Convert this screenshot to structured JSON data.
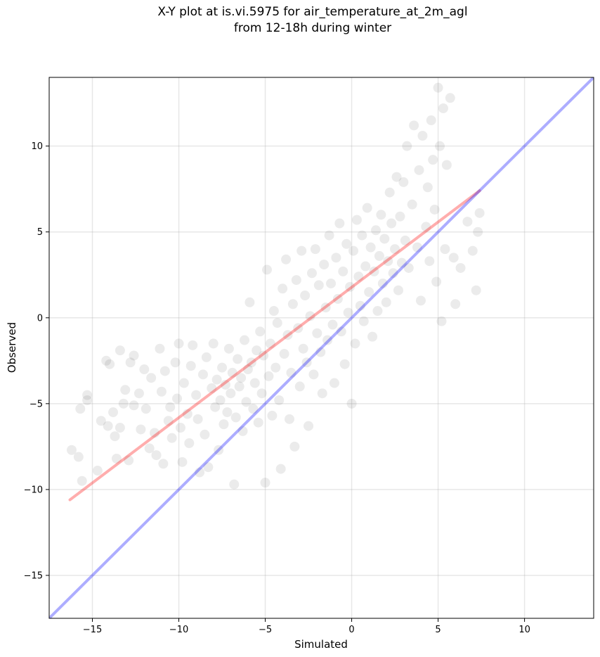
{
  "chart_data": {
    "type": "scatter",
    "title": [
      "X-Y plot at is.vi.5975 for air_temperature_at_2m_agl",
      "from 12-18h during winter"
    ],
    "xlabel": "Simulated",
    "ylabel": "Observed",
    "xlim": [
      -17.5,
      14.0
    ],
    "ylim": [
      -17.5,
      14.0
    ],
    "xticks": [
      -15,
      -10,
      -5,
      0,
      5,
      10
    ],
    "yticks": [
      -15,
      -10,
      -5,
      0,
      5,
      10
    ],
    "xtick_labels": [
      "−15",
      "−10",
      "−5",
      "0",
      "5",
      "10"
    ],
    "ytick_labels": [
      "−15",
      "−10",
      "−5",
      "0",
      "5",
      "10"
    ],
    "grid": true,
    "point_color": "#000000",
    "point_alpha": 0.08,
    "series": [
      {
        "type": "scatter",
        "values": [
          [
            -16.2,
            -7.7
          ],
          [
            -15.8,
            -8.1
          ],
          [
            -15.7,
            -5.3
          ],
          [
            -15.6,
            -9.5
          ],
          [
            -15.3,
            -4.5
          ],
          [
            -15.3,
            -4.8
          ],
          [
            -14.7,
            -8.9
          ],
          [
            -14.5,
            -6.0
          ],
          [
            -14.2,
            -2.5
          ],
          [
            -14.1,
            -6.3
          ],
          [
            -14.0,
            -2.7
          ],
          [
            -13.8,
            -5.5
          ],
          [
            -13.7,
            -6.9
          ],
          [
            -13.6,
            -8.2
          ],
          [
            -13.4,
            -1.9
          ],
          [
            -13.4,
            -6.4
          ],
          [
            -13.2,
            -5.0
          ],
          [
            -13.1,
            -4.2
          ],
          [
            -12.9,
            -8.3
          ],
          [
            -12.8,
            -2.6
          ],
          [
            -12.6,
            -2.2
          ],
          [
            -12.6,
            -5.1
          ],
          [
            -12.3,
            -4.4
          ],
          [
            -12.2,
            -6.5
          ],
          [
            -12.0,
            -3.0
          ],
          [
            -11.9,
            -5.3
          ],
          [
            -11.7,
            -7.6
          ],
          [
            -11.6,
            -3.5
          ],
          [
            -11.4,
            -6.7
          ],
          [
            -11.3,
            -8.0
          ],
          [
            -11.1,
            -1.8
          ],
          [
            -11.0,
            -4.3
          ],
          [
            -10.9,
            -8.5
          ],
          [
            -10.8,
            -3.1
          ],
          [
            -10.6,
            -6.0
          ],
          [
            -10.5,
            -5.2
          ],
          [
            -10.4,
            -7.0
          ],
          [
            -10.2,
            -2.6
          ],
          [
            -10.1,
            -4.7
          ],
          [
            -10.0,
            -1.5
          ],
          [
            -9.9,
            -6.4
          ],
          [
            -9.8,
            -8.4
          ],
          [
            -9.7,
            -3.8
          ],
          [
            -9.5,
            -5.6
          ],
          [
            -9.4,
            -7.3
          ],
          [
            -9.3,
            -2.8
          ],
          [
            -9.2,
            -1.6
          ],
          [
            -9.0,
            -4.5
          ],
          [
            -8.9,
            -5.9
          ],
          [
            -8.8,
            -9.0
          ],
          [
            -8.6,
            -3.3
          ],
          [
            -8.5,
            -6.8
          ],
          [
            -8.4,
            -2.3
          ],
          [
            -8.3,
            -8.7
          ],
          [
            -8.1,
            -4.1
          ],
          [
            -8.0,
            -1.5
          ],
          [
            -7.9,
            -5.2
          ],
          [
            -7.8,
            -3.6
          ],
          [
            -7.7,
            -7.7
          ],
          [
            -7.6,
            -4.8
          ],
          [
            -7.5,
            -2.9
          ],
          [
            -7.4,
            -6.2
          ],
          [
            -7.3,
            -3.9
          ],
          [
            -7.2,
            -5.5
          ],
          [
            -7.1,
            -1.8
          ],
          [
            -7.0,
            -4.4
          ],
          [
            -6.9,
            -3.2
          ],
          [
            -6.8,
            -9.7
          ],
          [
            -6.7,
            -5.8
          ],
          [
            -6.6,
            -2.4
          ],
          [
            -6.5,
            -4.0
          ],
          [
            -6.4,
            -3.5
          ],
          [
            -6.3,
            -6.6
          ],
          [
            -6.2,
            -1.3
          ],
          [
            -6.1,
            -4.9
          ],
          [
            -6.0,
            -3.0
          ],
          [
            -5.9,
            0.9
          ],
          [
            -5.8,
            -2.6
          ],
          [
            -5.7,
            -5.3
          ],
          [
            -5.6,
            -3.8
          ],
          [
            -5.5,
            -1.9
          ],
          [
            -5.4,
            -6.1
          ],
          [
            -5.3,
            -0.8
          ],
          [
            -5.2,
            -4.4
          ],
          [
            -5.1,
            -2.2
          ],
          [
            -5.0,
            -9.6
          ],
          [
            -4.9,
            2.8
          ],
          [
            -4.8,
            -3.4
          ],
          [
            -4.7,
            -1.5
          ],
          [
            -4.6,
            -5.7
          ],
          [
            -4.5,
            0.4
          ],
          [
            -4.4,
            -2.9
          ],
          [
            -4.3,
            -0.3
          ],
          [
            -4.2,
            -4.8
          ],
          [
            -4.1,
            -8.8
          ],
          [
            -4.0,
            1.7
          ],
          [
            -3.9,
            -2.1
          ],
          [
            -3.8,
            3.4
          ],
          [
            -3.7,
            -1.0
          ],
          [
            -3.6,
            -5.9
          ],
          [
            -3.5,
            -3.2
          ],
          [
            -3.4,
            0.8
          ],
          [
            -3.3,
            -7.5
          ],
          [
            -3.2,
            2.2
          ],
          [
            -3.1,
            -0.6
          ],
          [
            -3.0,
            -4.0
          ],
          [
            -2.9,
            3.9
          ],
          [
            -2.8,
            -1.8
          ],
          [
            -2.7,
            1.3
          ],
          [
            -2.6,
            -2.6
          ],
          [
            -2.5,
            -6.3
          ],
          [
            -2.4,
            0.1
          ],
          [
            -2.3,
            2.6
          ],
          [
            -2.2,
            -3.3
          ],
          [
            -2.1,
            4.0
          ],
          [
            -2.0,
            -0.9
          ],
          [
            -1.9,
            1.9
          ],
          [
            -1.8,
            -2.0
          ],
          [
            -1.7,
            -4.4
          ],
          [
            -1.6,
            3.1
          ],
          [
            -1.5,
            0.6
          ],
          [
            -1.4,
            -1.3
          ],
          [
            -1.3,
            4.8
          ],
          [
            -1.2,
            2.0
          ],
          [
            -1.1,
            -0.4
          ],
          [
            -1.0,
            -3.8
          ],
          [
            -0.9,
            3.5
          ],
          [
            -0.8,
            1.1
          ],
          [
            -0.7,
            5.5
          ],
          [
            -0.6,
            -0.8
          ],
          [
            -0.5,
            2.7
          ],
          [
            -0.4,
            -2.7
          ],
          [
            -0.3,
            4.3
          ],
          [
            -0.2,
            0.3
          ],
          [
            -0.1,
            1.8
          ],
          [
            0.0,
            -5.0
          ],
          [
            0.1,
            3.9
          ],
          [
            0.2,
            -1.5
          ],
          [
            0.3,
            5.7
          ],
          [
            0.4,
            2.4
          ],
          [
            0.5,
            0.7
          ],
          [
            0.6,
            4.8
          ],
          [
            0.7,
            -0.2
          ],
          [
            0.8,
            3.0
          ],
          [
            0.9,
            6.4
          ],
          [
            1.0,
            1.5
          ],
          [
            1.1,
            4.1
          ],
          [
            1.2,
            -1.1
          ],
          [
            1.3,
            2.7
          ],
          [
            1.4,
            5.1
          ],
          [
            1.5,
            0.4
          ],
          [
            1.6,
            3.6
          ],
          [
            1.7,
            6.0
          ],
          [
            1.8,
            2.0
          ],
          [
            1.9,
            4.6
          ],
          [
            2.0,
            0.9
          ],
          [
            2.1,
            3.3
          ],
          [
            2.2,
            7.3
          ],
          [
            2.3,
            5.5
          ],
          [
            2.4,
            2.6
          ],
          [
            2.5,
            4.0
          ],
          [
            2.6,
            8.2
          ],
          [
            2.7,
            1.6
          ],
          [
            2.8,
            5.9
          ],
          [
            2.9,
            3.2
          ],
          [
            3.0,
            7.9
          ],
          [
            3.1,
            4.5
          ],
          [
            3.2,
            10.0
          ],
          [
            3.3,
            2.9
          ],
          [
            3.5,
            6.6
          ],
          [
            3.6,
            11.2
          ],
          [
            3.8,
            4.1
          ],
          [
            3.9,
            8.6
          ],
          [
            4.0,
            1.0
          ],
          [
            4.1,
            10.6
          ],
          [
            4.3,
            5.3
          ],
          [
            4.4,
            7.6
          ],
          [
            4.5,
            3.3
          ],
          [
            4.6,
            11.5
          ],
          [
            4.7,
            9.2
          ],
          [
            4.8,
            6.3
          ],
          [
            4.9,
            2.1
          ],
          [
            5.0,
            13.4
          ],
          [
            5.1,
            10.0
          ],
          [
            5.2,
            -0.2
          ],
          [
            5.3,
            12.2
          ],
          [
            5.4,
            4.0
          ],
          [
            5.5,
            8.9
          ],
          [
            5.7,
            12.8
          ],
          [
            5.9,
            3.5
          ],
          [
            6.0,
            0.8
          ],
          [
            6.3,
            2.9
          ],
          [
            6.7,
            5.6
          ],
          [
            7.0,
            3.9
          ],
          [
            7.2,
            1.6
          ],
          [
            7.3,
            5.0
          ],
          [
            7.4,
            6.1
          ]
        ]
      }
    ],
    "lines": [
      {
        "name": "",
        "color": "#ff0000",
        "alpha": 0.32,
        "x": [
          -16.3,
          7.4
        ],
        "y": [
          -10.6,
          7.4
        ]
      },
      {
        "name": "",
        "color": "#0000ff",
        "alpha": 0.32,
        "x": [
          -17.5,
          14.0
        ],
        "y": [
          -17.5,
          14.0
        ]
      }
    ]
  }
}
